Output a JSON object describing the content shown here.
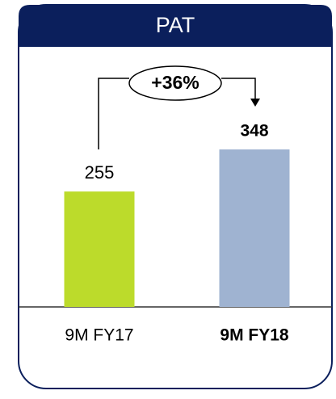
{
  "chart_data": {
    "type": "bar",
    "title": "PAT",
    "categories": [
      "9M FY17",
      "9M FY18"
    ],
    "values": [
      255,
      348
    ],
    "colors": [
      "#bcdb2b",
      "#9fb3d1"
    ],
    "annotation": "+36%"
  }
}
